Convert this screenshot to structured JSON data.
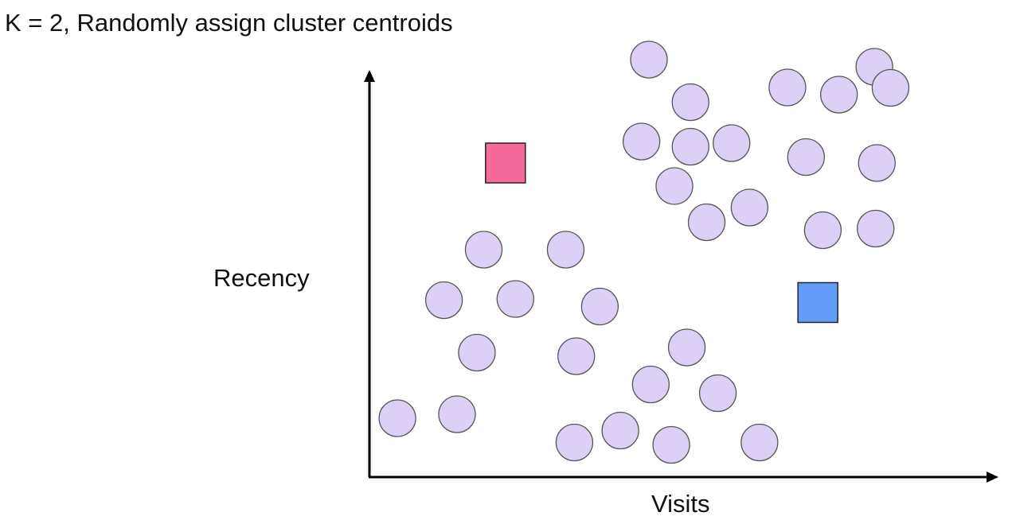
{
  "title": "K = 2, Randomly assign cluster centroids",
  "chart_data": {
    "type": "scatter",
    "xlabel": "Visits",
    "ylabel": "Recency",
    "xlim": [
      0,
      100
    ],
    "ylim": [
      0,
      100
    ],
    "grid": false,
    "points_color": "#DCD0F6",
    "points_stroke": "#555555",
    "points": [
      {
        "x": 4.5,
        "y": 14.8
      },
      {
        "x": 14.1,
        "y": 15.8
      },
      {
        "x": 17.3,
        "y": 31.3
      },
      {
        "x": 12.0,
        "y": 44.5
      },
      {
        "x": 23.5,
        "y": 44.8
      },
      {
        "x": 18.4,
        "y": 57.2
      },
      {
        "x": 31.6,
        "y": 57.2
      },
      {
        "x": 37.1,
        "y": 42.9
      },
      {
        "x": 33.3,
        "y": 30.4
      },
      {
        "x": 33.0,
        "y": 8.7
      },
      {
        "x": 40.4,
        "y": 11.7
      },
      {
        "x": 45.3,
        "y": 23.3
      },
      {
        "x": 51.1,
        "y": 32.6
      },
      {
        "x": 56.1,
        "y": 21.1
      },
      {
        "x": 48.6,
        "y": 8.1
      },
      {
        "x": 62.8,
        "y": 8.7
      },
      {
        "x": 54.3,
        "y": 64.1
      },
      {
        "x": 61.2,
        "y": 67.8
      },
      {
        "x": 49.1,
        "y": 73.2
      },
      {
        "x": 43.8,
        "y": 84.4
      },
      {
        "x": 51.7,
        "y": 83.1
      },
      {
        "x": 58.3,
        "y": 84.0
      },
      {
        "x": 51.7,
        "y": 94.3
      },
      {
        "x": 45.0,
        "y": 105.0
      },
      {
        "x": 67.3,
        "y": 98.0
      },
      {
        "x": 70.3,
        "y": 80.5
      },
      {
        "x": 75.6,
        "y": 96.2
      },
      {
        "x": 81.3,
        "y": 103.2
      },
      {
        "x": 83.9,
        "y": 97.9
      },
      {
        "x": 81.7,
        "y": 79.0
      },
      {
        "x": 73.0,
        "y": 62.1
      },
      {
        "x": 81.5,
        "y": 62.5
      }
    ],
    "centroids": [
      {
        "x": 21.9,
        "y": 79.0,
        "color": "#F56A9A"
      },
      {
        "x": 72.2,
        "y": 43.9,
        "color": "#649BF9"
      }
    ]
  }
}
